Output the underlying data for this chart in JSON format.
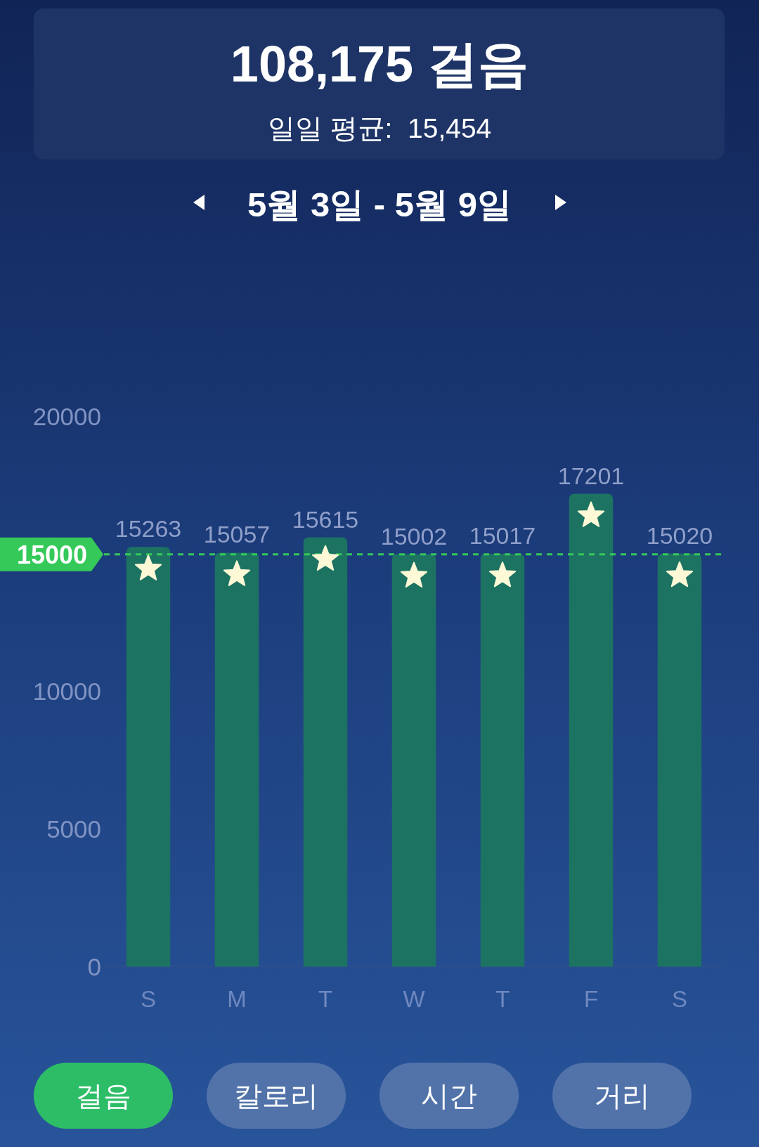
{
  "chart_data": {
    "type": "bar",
    "title": "108,175 걸음",
    "subtitle": "일일 평균:  15,454",
    "categories": [
      "S",
      "M",
      "T",
      "W",
      "T",
      "F",
      "S"
    ],
    "values": [
      15263,
      15057,
      15615,
      15002,
      15017,
      17201,
      15020
    ],
    "color": "#1d7362",
    "data_labels": true,
    "ylim": [
      0,
      20000
    ],
    "yticks": [
      0,
      5000,
      10000,
      20000
    ],
    "ref_lines": [
      {
        "axis": "y",
        "value": 15000,
        "label": "15000",
        "color": "#35c95a",
        "line_style": "dashed"
      }
    ],
    "annotations": [
      "5월 3일 - 5월 9일",
      "걸음",
      "칼로리",
      "시간",
      "거리"
    ]
  }
}
